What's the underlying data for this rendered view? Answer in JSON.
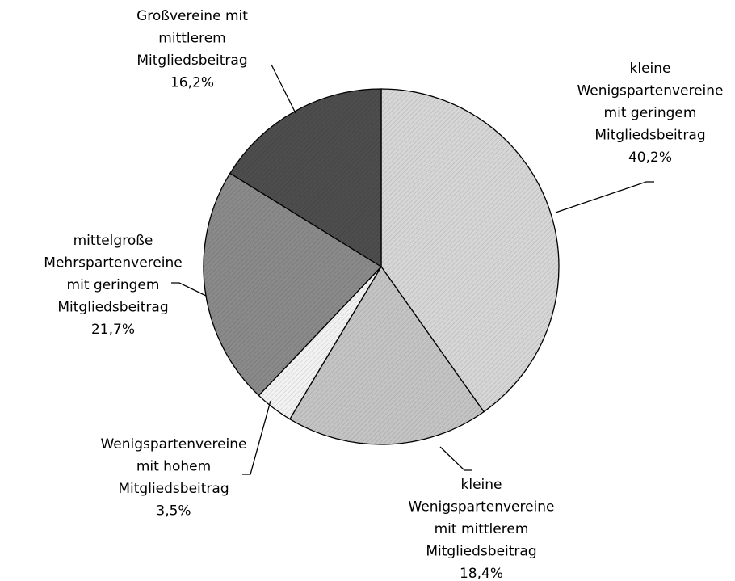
{
  "chart_data": {
    "type": "pie",
    "categories": [
      [
        "kleine",
        "Wenigspartenvereine",
        "mit geringem",
        "Mitgliedsbeitrag"
      ],
      [
        "kleine",
        "Wenigspartenvereine",
        "mit mittlerem",
        "Mitgliedsbeitrag"
      ],
      [
        "Wenigspartenvereine",
        "mit hohem",
        "Mitgliedsbeitrag"
      ],
      [
        "mittelgroße",
        "Mehrspartenvereine",
        "mit geringem",
        "Mitgliedsbeitrag"
      ],
      [
        "Großvereine mit",
        "mittlerem",
        "Mitgliedsbeitrag"
      ]
    ],
    "values": [
      40.2,
      18.4,
      3.5,
      21.7,
      16.2
    ],
    "value_labels": [
      "40,2%",
      "18,4%",
      "3,5%",
      "21,7%",
      "16,2%"
    ],
    "colors": [
      "#d6d6d6",
      "#c4c4c4",
      "#f2f2f2",
      "#8a8a8a",
      "#4d4d4d"
    ]
  }
}
